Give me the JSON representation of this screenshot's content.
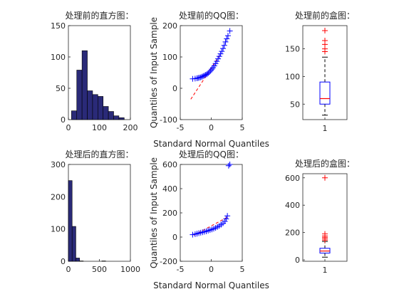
{
  "figure": {
    "background": "#ffffff",
    "fill_color": "#2a2a78",
    "edge_color": "#000000",
    "marker_color": "#0000ff",
    "fit_color": "#ff0000",
    "box_color": "#0000ff",
    "median_color": "#ff0000",
    "whisker_color": "#000000",
    "outlier_color": "#ff0000"
  },
  "chart_data": [
    {
      "id": "hist-before",
      "type": "bar",
      "subtype": "histogram",
      "title": "处理前的直方图：",
      "bins": [
        {
          "x0": 10,
          "x1": 27,
          "count": 14
        },
        {
          "x0": 27,
          "x1": 44,
          "count": 79
        },
        {
          "x0": 44,
          "x1": 61,
          "count": 110
        },
        {
          "x0": 61,
          "x1": 78,
          "count": 46
        },
        {
          "x0": 78,
          "x1": 95,
          "count": 40
        },
        {
          "x0": 95,
          "x1": 112,
          "count": 37
        },
        {
          "x0": 112,
          "x1": 129,
          "count": 21
        },
        {
          "x0": 129,
          "x1": 146,
          "count": 13
        },
        {
          "x0": 146,
          "x1": 163,
          "count": 6
        },
        {
          "x0": 163,
          "x1": 180,
          "count": 3
        }
      ],
      "xlim": [
        0,
        200
      ],
      "ylim": [
        0,
        150
      ],
      "xticks": [
        0,
        100,
        200
      ],
      "yticks": [
        0,
        50,
        100,
        150
      ],
      "grid": false
    },
    {
      "id": "qq-before",
      "type": "scatter",
      "subtype": "qq-plot",
      "title": "处理前的QQ图：",
      "xlabel": "Standard Normal Quantiles",
      "ylabel": "Quantiles of Input Sample",
      "points": [
        [
          -3.0,
          30
        ],
        [
          -2.6,
          31
        ],
        [
          -2.3,
          32
        ],
        [
          -2.1,
          33
        ],
        [
          -1.9,
          34
        ],
        [
          -1.7,
          35
        ],
        [
          -1.5,
          37
        ],
        [
          -1.3,
          39
        ],
        [
          -1.1,
          41
        ],
        [
          -0.9,
          43
        ],
        [
          -0.7,
          45
        ],
        [
          -0.5,
          48
        ],
        [
          -0.3,
          52
        ],
        [
          -0.1,
          56
        ],
        [
          0.1,
          61
        ],
        [
          0.3,
          66
        ],
        [
          0.5,
          72
        ],
        [
          0.7,
          79
        ],
        [
          0.9,
          86
        ],
        [
          1.1,
          94
        ],
        [
          1.3,
          102
        ],
        [
          1.5,
          110
        ],
        [
          1.7,
          118
        ],
        [
          1.9,
          127
        ],
        [
          2.1,
          137
        ],
        [
          2.3,
          148
        ],
        [
          2.5,
          158
        ],
        [
          2.7,
          168
        ],
        [
          3.0,
          183
        ]
      ],
      "fit_line": [
        [
          -3.3,
          -35
        ],
        [
          1.5,
          110
        ]
      ],
      "xlim": [
        -5,
        5
      ],
      "ylim": [
        -100,
        200
      ],
      "xticks": [
        -5,
        0,
        5
      ],
      "yticks": [
        -100,
        0,
        100,
        200
      ],
      "grid": false
    },
    {
      "id": "box-before",
      "type": "boxplot",
      "title": "处理前的盒图：",
      "category": "1",
      "whisker_low": 30,
      "q1": 50,
      "median": 60,
      "q3": 90,
      "whisker_high": 135,
      "outliers": [
        145,
        150,
        158,
        165,
        183
      ],
      "ylim": [
        22,
        192
      ],
      "yticks": [
        50,
        100,
        150
      ],
      "grid": false
    },
    {
      "id": "hist-after",
      "type": "bar",
      "subtype": "histogram",
      "title": "处理后的直方图：",
      "bins": [
        {
          "x0": 0,
          "x1": 60,
          "count": 250
        },
        {
          "x0": 60,
          "x1": 120,
          "count": 108
        },
        {
          "x0": 120,
          "x1": 180,
          "count": 10
        },
        {
          "x0": 180,
          "x1": 240,
          "count": 1
        },
        {
          "x0": 240,
          "x1": 300,
          "count": 0
        },
        {
          "x0": 300,
          "x1": 360,
          "count": 0
        },
        {
          "x0": 360,
          "x1": 420,
          "count": 0
        },
        {
          "x0": 420,
          "x1": 480,
          "count": 0
        },
        {
          "x0": 480,
          "x1": 540,
          "count": 0
        },
        {
          "x0": 540,
          "x1": 600,
          "count": 1
        }
      ],
      "xlim": [
        0,
        1000
      ],
      "ylim": [
        0,
        300
      ],
      "xticks": [
        0,
        500,
        1000
      ],
      "yticks": [
        0,
        100,
        200,
        300
      ],
      "grid": false
    },
    {
      "id": "qq-after",
      "type": "scatter",
      "subtype": "qq-plot",
      "title": "处理后的QQ图：",
      "xlabel": "Standard Normal Quantiles",
      "ylabel": "Quantiles of Input Sample",
      "points": [
        [
          -3.0,
          20
        ],
        [
          -2.6,
          24
        ],
        [
          -2.3,
          28
        ],
        [
          -2.0,
          32
        ],
        [
          -1.7,
          36
        ],
        [
          -1.4,
          40
        ],
        [
          -1.1,
          44
        ],
        [
          -0.8,
          48
        ],
        [
          -0.5,
          53
        ],
        [
          -0.2,
          58
        ],
        [
          0.1,
          63
        ],
        [
          0.4,
          69
        ],
        [
          0.7,
          76
        ],
        [
          1.0,
          84
        ],
        [
          1.3,
          93
        ],
        [
          1.6,
          103
        ],
        [
          1.9,
          115
        ],
        [
          2.2,
          130
        ],
        [
          2.4,
          150
        ],
        [
          2.6,
          175
        ],
        [
          2.8,
          590
        ],
        [
          3.0,
          600
        ]
      ],
      "fit_line": [
        [
          -2.8,
          15
        ],
        [
          2.8,
          170
        ]
      ],
      "xlim": [
        -5,
        5
      ],
      "ylim": [
        -200,
        600
      ],
      "xticks": [
        -5,
        0,
        5
      ],
      "yticks": [
        -200,
        0,
        200,
        400,
        600
      ],
      "grid": false
    },
    {
      "id": "box-after",
      "type": "boxplot",
      "title": "处理后的盒图：",
      "category": "1",
      "whisker_low": 20,
      "q1": 50,
      "median": 65,
      "q3": 85,
      "whisker_high": 135,
      "outliers": [
        145,
        155,
        165,
        175,
        190,
        600
      ],
      "ylim": [
        -10,
        630
      ],
      "yticks": [
        0,
        200,
        400,
        600
      ],
      "grid": false
    }
  ]
}
